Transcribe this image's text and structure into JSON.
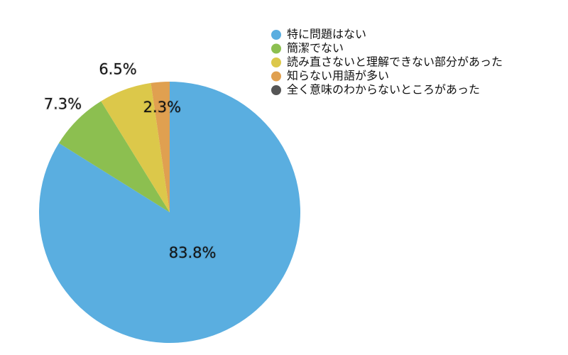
{
  "chart_data": {
    "type": "pie",
    "categories": [
      "特に問題はない",
      "簡潔でない",
      "読み直さないと理解できない部分があった",
      "知らない用語が多い",
      "全く意味のわからないところがあった"
    ],
    "values": [
      83.8,
      7.3,
      6.5,
      2.3,
      0
    ],
    "value_labels": [
      "83.8%",
      "7.3%",
      "6.5%",
      "2.3%",
      null
    ],
    "colors": [
      "#5aaee0",
      "#8cbf50",
      "#dcc84a",
      "#e0a050",
      "#555555"
    ],
    "legend": "top-right"
  }
}
